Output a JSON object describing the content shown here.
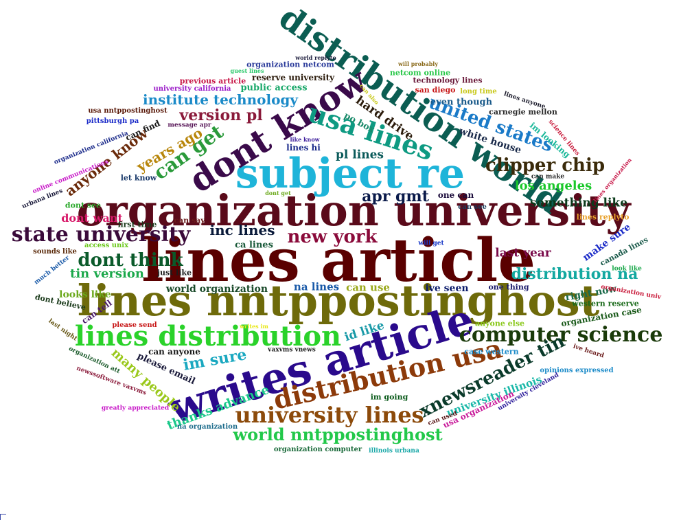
{
  "words": [
    {
      "text": "lines article",
      "color": "#5a0000"
    },
    {
      "text": "lines nntppostinghost",
      "color": "#6e6a0a"
    },
    {
      "text": "organization university",
      "color": "#5a0a1a"
    },
    {
      "text": "writes article",
      "color": "#2a0a8c"
    },
    {
      "text": "subject re",
      "color": "#1eb4d9"
    },
    {
      "text": "distribution world",
      "color": "#0b5d52"
    },
    {
      "text": "dont know",
      "color": "#3a0a4a"
    },
    {
      "text": "lines distribution",
      "color": "#2ad22a"
    },
    {
      "text": "distribution usa",
      "color": "#8c3a0a"
    },
    {
      "text": "computer science",
      "color": "#1a3a0a"
    },
    {
      "text": "usa lines",
      "color": "#0e9a82"
    },
    {
      "text": "state university",
      "color": "#3a0a3a"
    },
    {
      "text": "university lines",
      "color": "#8c4a0a"
    },
    {
      "text": "xnewsreader tin",
      "color": "#0a3a2a"
    },
    {
      "text": "world nntppostinghost",
      "color": "#22c84a"
    },
    {
      "text": "clipper chip",
      "color": "#3a2a0a"
    },
    {
      "text": "united states",
      "color": "#1a7ac8"
    },
    {
      "text": "dont think",
      "color": "#0a5a2a"
    },
    {
      "text": "new york",
      "color": "#8a0a3a"
    },
    {
      "text": "distribution na",
      "color": "#12a8a0"
    },
    {
      "text": "can get",
      "color": "#2a9a3a"
    },
    {
      "text": "im sure",
      "color": "#1aa8c0"
    },
    {
      "text": "anyone know",
      "color": "#6a2a0a"
    },
    {
      "text": "apr gmt",
      "color": "#0a1a4a"
    },
    {
      "text": "version pl",
      "color": "#8a1a3a"
    },
    {
      "text": "many people",
      "color": "#9ac81a"
    },
    {
      "text": "institute technology",
      "color": "#1a8ac8"
    },
    {
      "text": "years ago",
      "color": "#b8860b"
    },
    {
      "text": "thanks advance",
      "color": "#1ac88a"
    },
    {
      "text": "tin version",
      "color": "#1aa84a"
    },
    {
      "text": "inc lines",
      "color": "#0a1a3a"
    },
    {
      "text": "los angeles",
      "color": "#1ac82a"
    },
    {
      "text": "something like",
      "color": "#0a3a1a"
    },
    {
      "text": "last year",
      "color": "#7a0a4a"
    },
    {
      "text": "dont want",
      "color": "#d81a6a"
    },
    {
      "text": "hard drive",
      "color": "#2a1a0a"
    },
    {
      "text": "pl lines",
      "color": "#0a5a5a"
    },
    {
      "text": "id like",
      "color": "#1a9aa8"
    },
    {
      "text": "university illinois",
      "color": "#1ab8a8"
    },
    {
      "text": "make sure",
      "color": "#1a2ac8"
    },
    {
      "text": "looks like",
      "color": "#6aa81a"
    },
    {
      "text": "white house",
      "color": "#1a2a4a"
    },
    {
      "text": "na lines",
      "color": "#1a5aa8"
    },
    {
      "text": "can use",
      "color": "#9aa81a"
    },
    {
      "text": "right now",
      "color": "#1a6a4a"
    },
    {
      "text": "ive seen",
      "color": "#0a1a6a"
    },
    {
      "text": "world organization",
      "color": "#1a4a2a"
    },
    {
      "text": "public access",
      "color": "#1aa86a"
    },
    {
      "text": "even though",
      "color": "#1a5a8a"
    },
    {
      "text": "im looking",
      "color": "#1ab89a"
    },
    {
      "text": "po box",
      "color": "#1a8a6a"
    },
    {
      "text": "please email",
      "color": "#1a1a3a"
    },
    {
      "text": "reserve university",
      "color": "#2a1a0a"
    },
    {
      "text": "one can",
      "color": "#1a0a3a"
    },
    {
      "text": "ca lines",
      "color": "#1a5a3a"
    },
    {
      "text": "lines hi",
      "color": "#1a2a8a"
    },
    {
      "text": "usa organization",
      "color": "#c81a9a"
    },
    {
      "text": "im going",
      "color": "#0a5a1a"
    },
    {
      "text": "case western",
      "color": "#1a8ac8"
    },
    {
      "text": "can find",
      "color": "#1a1a1a"
    },
    {
      "text": "organization case",
      "color": "#1a5a1a"
    },
    {
      "text": "western reserve",
      "color": "#1a6a1a"
    },
    {
      "text": "can tell",
      "color": "#4a1a6a"
    },
    {
      "text": "can anyone",
      "color": "#1a1a1a"
    },
    {
      "text": "carnegie mellon",
      "color": "#2a2a2a"
    },
    {
      "text": "canada lines",
      "color": "#1a5a4a"
    },
    {
      "text": "anyone else",
      "color": "#8ac81a"
    },
    {
      "text": "san diego",
      "color": "#c81a1a"
    },
    {
      "text": "first time",
      "color": "#1a3a1a"
    },
    {
      "text": "one thing",
      "color": "#1a1a6a"
    },
    {
      "text": "technology lines",
      "color": "#6a1a3a"
    },
    {
      "text": "dont see",
      "color": "#2aa82a"
    },
    {
      "text": "let know",
      "color": "#1a3a6a"
    },
    {
      "text": "can say",
      "color": "#6a1a1a"
    },
    {
      "text": "just like",
      "color": "#1a1a1a"
    },
    {
      "text": "dont believe",
      "color": "#1a3a1a"
    },
    {
      "text": "netcom online",
      "color": "#2ac84a"
    },
    {
      "text": "lines replyto",
      "color": "#e8a02a"
    },
    {
      "text": "organization netcom",
      "color": "#2a3a9a"
    },
    {
      "text": "university california",
      "color": "#9a1ac8"
    },
    {
      "text": "previous article",
      "color": "#c81a4a"
    },
    {
      "text": "usa nntppostinghost",
      "color": "#5a1a0a"
    },
    {
      "text": "long time",
      "color": "#c8c81a"
    },
    {
      "text": "lines anyone",
      "color": "#1a1a2a"
    },
    {
      "text": "pittsburgh pa",
      "color": "#1a2ac8"
    },
    {
      "text": "message apr",
      "color": "#5a1a5a"
    },
    {
      "text": "organization california",
      "color": "#1a2a8a"
    },
    {
      "text": "online communications",
      "color": "#c81ac8"
    },
    {
      "text": "urbana lines",
      "color": "#1a1a3a"
    },
    {
      "text": "sounds like",
      "color": "#5a2a0a"
    },
    {
      "text": "access unix",
      "color": "#6ac81a"
    },
    {
      "text": "much better",
      "color": "#1a5aa8"
    },
    {
      "text": "will get",
      "color": "#1a3ac8"
    },
    {
      "text": "can see",
      "color": "#1a3a5a"
    },
    {
      "text": "can make",
      "color": "#2a2a2a"
    },
    {
      "text": "look like",
      "color": "#1aa84a"
    },
    {
      "text": "science lines",
      "color": "#c81a3a"
    },
    {
      "text": "lines organization",
      "color": "#c81a4a"
    },
    {
      "text": "organization univ",
      "color": "#c81a3a"
    },
    {
      "text": "please send",
      "color": "#c81a1a"
    },
    {
      "text": "writes im",
      "color": "#e8e81a"
    },
    {
      "text": "last night",
      "color": "#6a5a1a"
    },
    {
      "text": "organization att",
      "color": "#1a5a2a"
    },
    {
      "text": "newssoftware vaxvms",
      "color": "#8a1a3a"
    },
    {
      "text": "greatly appreciated",
      "color": "#c81ac8"
    },
    {
      "text": "na organization",
      "color": "#1a6a8a"
    },
    {
      "text": "organization computer",
      "color": "#1a6a3a"
    },
    {
      "text": "illinois urbana",
      "color": "#1aa8a8"
    },
    {
      "text": "can used",
      "color": "#5a1a1a"
    },
    {
      "text": "university cleveland",
      "color": "#2a1a9a"
    },
    {
      "text": "opinions expressed",
      "color": "#1a8ac8"
    },
    {
      "text": "ive heard",
      "color": "#6a1a1a"
    },
    {
      "text": "vaxvms vnews",
      "color": "#1a1a1a"
    },
    {
      "text": "dont get",
      "color": "#6aa81a"
    },
    {
      "text": "like know",
      "color": "#3a1a9a"
    },
    {
      "text": "can also",
      "color": "#c8c81a"
    },
    {
      "text": "guest lines",
      "color": "#2ac86a"
    },
    {
      "text": "world replyto",
      "color": "#1a1a3a"
    },
    {
      "text": "will probably",
      "color": "#8a6a1a"
    }
  ]
}
